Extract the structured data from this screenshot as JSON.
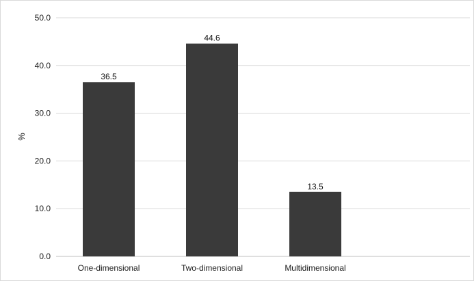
{
  "chart_data": {
    "type": "bar",
    "title": "",
    "xlabel": "",
    "ylabel": "%",
    "categories": [
      "One-dimensional",
      "Two-dimensional",
      "Multidimensional"
    ],
    "values": [
      36.5,
      44.6,
      13.5
    ],
    "data_labels": [
      "36.5",
      "44.6",
      "13.5"
    ],
    "ylim": [
      0,
      50
    ],
    "yticks": [
      0,
      10,
      20,
      30,
      40,
      50
    ],
    "ytick_labels": [
      "0.0",
      "10.0",
      "20.0",
      "30.0",
      "40.0",
      "50.0"
    ],
    "grid": true,
    "legend": "none",
    "bar_color": "#3a3a3a",
    "grid_color": "#d9d9d9"
  }
}
